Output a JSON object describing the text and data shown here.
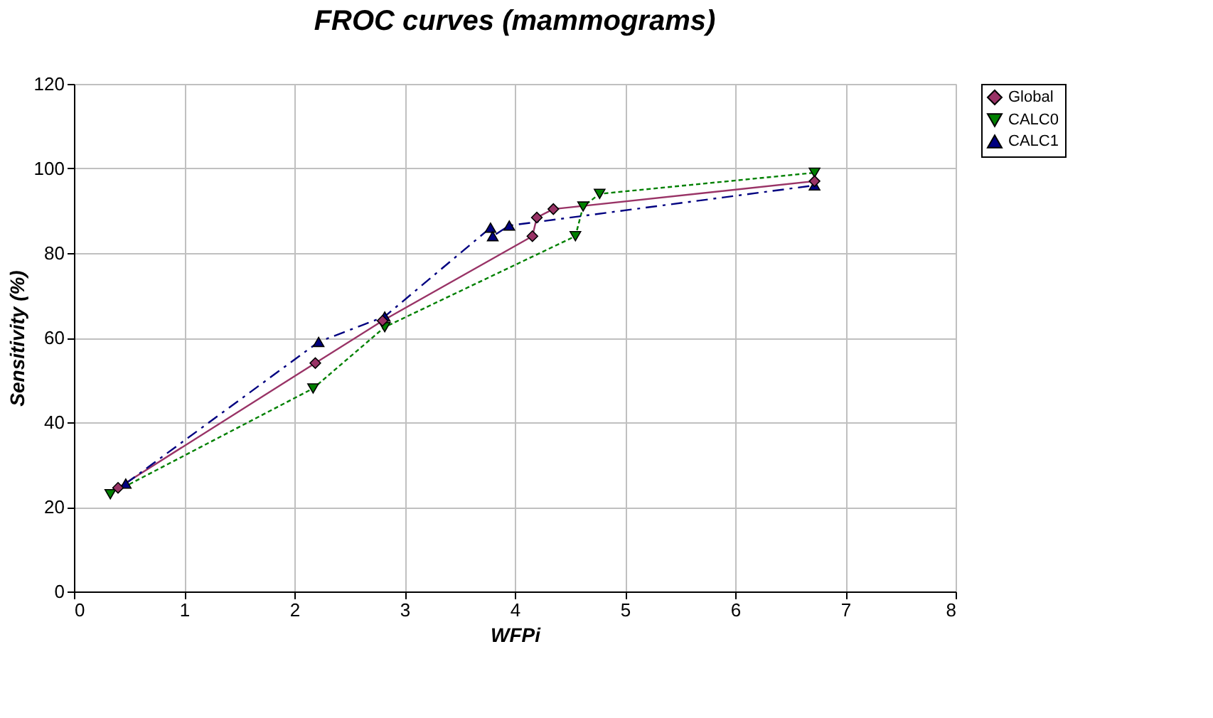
{
  "chart_data": {
    "type": "line",
    "title": "FROC curves (mammograms)",
    "xlabel": "WFPi",
    "ylabel": "Sensitivity (%)",
    "xlim": [
      0,
      8
    ],
    "xticks": [
      0,
      1,
      2,
      3,
      4,
      5,
      6,
      7,
      8
    ],
    "ylim": [
      0,
      120
    ],
    "yticks": [
      0,
      20,
      40,
      60,
      80,
      100,
      120
    ],
    "grid": true,
    "legend": "right",
    "series": [
      {
        "name": "Global",
        "color": "#993366",
        "marker": "diamond",
        "line_style": "solid",
        "x": [
          0.4,
          2.19,
          2.8,
          4.16,
          4.2,
          4.35,
          6.72
        ],
        "values": [
          24.5,
          54,
          64,
          84,
          88.4,
          90.4,
          97
        ]
      },
      {
        "name": "CALC0",
        "color": "#008000",
        "marker": "triangle-down",
        "line_style": "dotted",
        "x": [
          0.33,
          2.17,
          2.82,
          4.55,
          4.62,
          4.77,
          6.72
        ],
        "values": [
          23,
          48,
          62.5,
          84,
          91,
          94,
          99
        ]
      },
      {
        "name": "CALC1",
        "color": "#000080",
        "marker": "triangle",
        "line_style": "dashed",
        "x": [
          0.47,
          2.22,
          2.82,
          3.78,
          3.8,
          3.95,
          6.72
        ],
        "values": [
          25.5,
          59,
          65,
          86,
          84,
          86.5,
          96
        ]
      }
    ]
  }
}
